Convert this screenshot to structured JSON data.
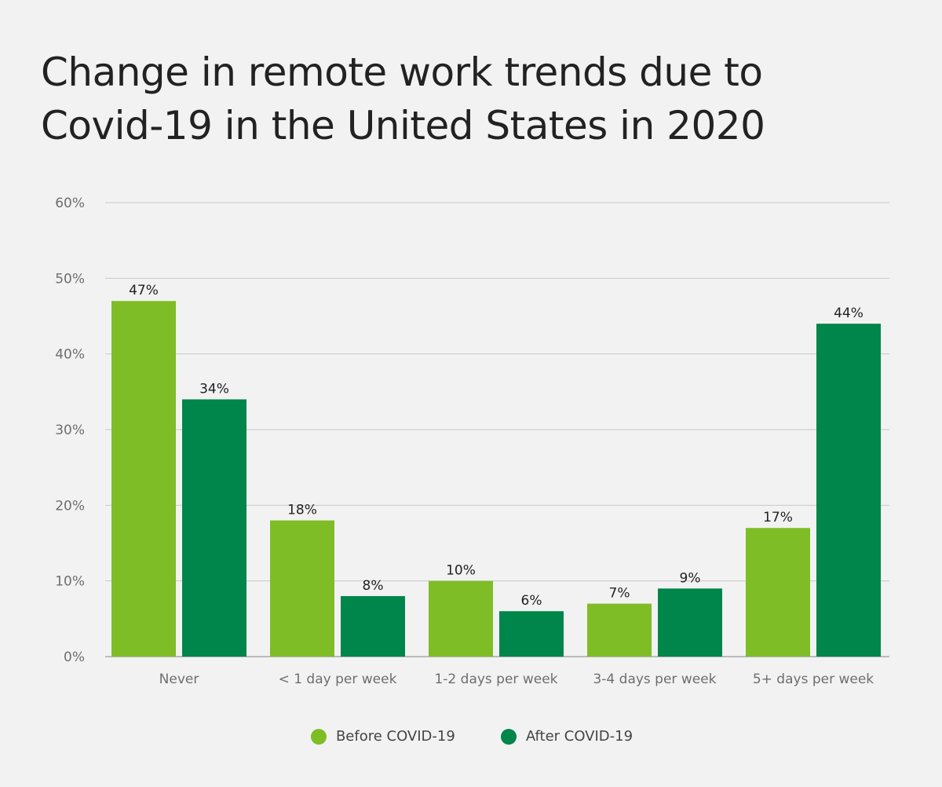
{
  "chart_data": {
    "type": "bar",
    "title_lines": [
      "Change in remote work trends due to",
      "Covid-19 in the United States in 2020"
    ],
    "xlabel": "",
    "ylabel": "",
    "categories": [
      "Never",
      "< 1 day per week",
      "1-2 days per week",
      "3-4 days per week",
      "5+ days per week"
    ],
    "series": [
      {
        "name": "Before COVID-19",
        "color": "#7fbd26",
        "values": [
          47,
          18,
          10,
          7,
          17
        ],
        "labels": [
          "47%",
          "18%",
          "10%",
          "7%",
          "17%"
        ]
      },
      {
        "name": "After COVID-19",
        "color": "#00854a",
        "values": [
          34,
          8,
          6,
          9,
          44
        ],
        "labels": [
          "34%",
          "8%",
          "6%",
          "9%",
          "44%"
        ]
      }
    ],
    "ylim": [
      0,
      60
    ],
    "yticks": [
      0,
      10,
      20,
      30,
      40,
      50,
      60
    ],
    "ytick_labels": [
      "0%",
      "10%",
      "20%",
      "30%",
      "40%",
      "50%",
      "60%"
    ],
    "grid": true,
    "legend_position": "bottom-center"
  }
}
